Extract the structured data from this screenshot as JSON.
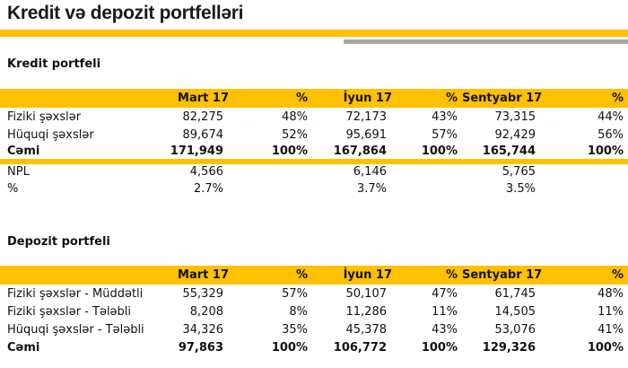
{
  "page": {
    "title": "Kredit və depozit portfelləri"
  },
  "colors": {
    "accent_yellow": "#FFC000",
    "accent_gray": "#A6A6A6",
    "text": "#111111"
  },
  "kredit": {
    "heading": "Kredit portfeli",
    "columns": [
      "",
      "Mart 17",
      "%",
      "İyun 17",
      "%",
      "Sentyabr 17",
      "%"
    ],
    "rows": [
      {
        "label": "Fiziki şəxslər",
        "values": [
          "82,275",
          "48%",
          "72,173",
          "43%",
          "73,315",
          "44%"
        ]
      },
      {
        "label": "Hüquqi şəxslər",
        "values": [
          "89,674",
          "52%",
          "95,691",
          "57%",
          "92,429",
          "56%"
        ]
      },
      {
        "label": "Cəmi",
        "values": [
          "171,949",
          "100%",
          "167,864",
          "100%",
          "165,744",
          "100%"
        ]
      }
    ],
    "npl_rows": [
      {
        "label": "NPL",
        "values": [
          "4,566",
          "6,146",
          "5,765"
        ]
      },
      {
        "label": "%",
        "values": [
          "2.7%",
          "3.7%",
          "3.5%"
        ]
      }
    ]
  },
  "depozit": {
    "heading": "Depozit portfeli",
    "columns": [
      "",
      "Mart 17",
      "%",
      "İyun 17",
      "%",
      "Sentyabr 17",
      "%"
    ],
    "rows": [
      {
        "label": "Fiziki şəxslər - Müddətli",
        "values": [
          "55,329",
          "57%",
          "50,107",
          "47%",
          "61,745",
          "48%"
        ]
      },
      {
        "label": "Fiziki şəxslər - Tələbli",
        "values": [
          "8,208",
          "8%",
          "11,286",
          "11%",
          "14,505",
          "11%"
        ]
      },
      {
        "label": "Hüquqi şəxslər - Tələbli",
        "values": [
          "34,326",
          "35%",
          "45,378",
          "43%",
          "53,076",
          "41%"
        ]
      },
      {
        "label": "Cəmi",
        "values": [
          "97,863",
          "100%",
          "106,772",
          "100%",
          "129,326",
          "100%"
        ]
      }
    ]
  }
}
